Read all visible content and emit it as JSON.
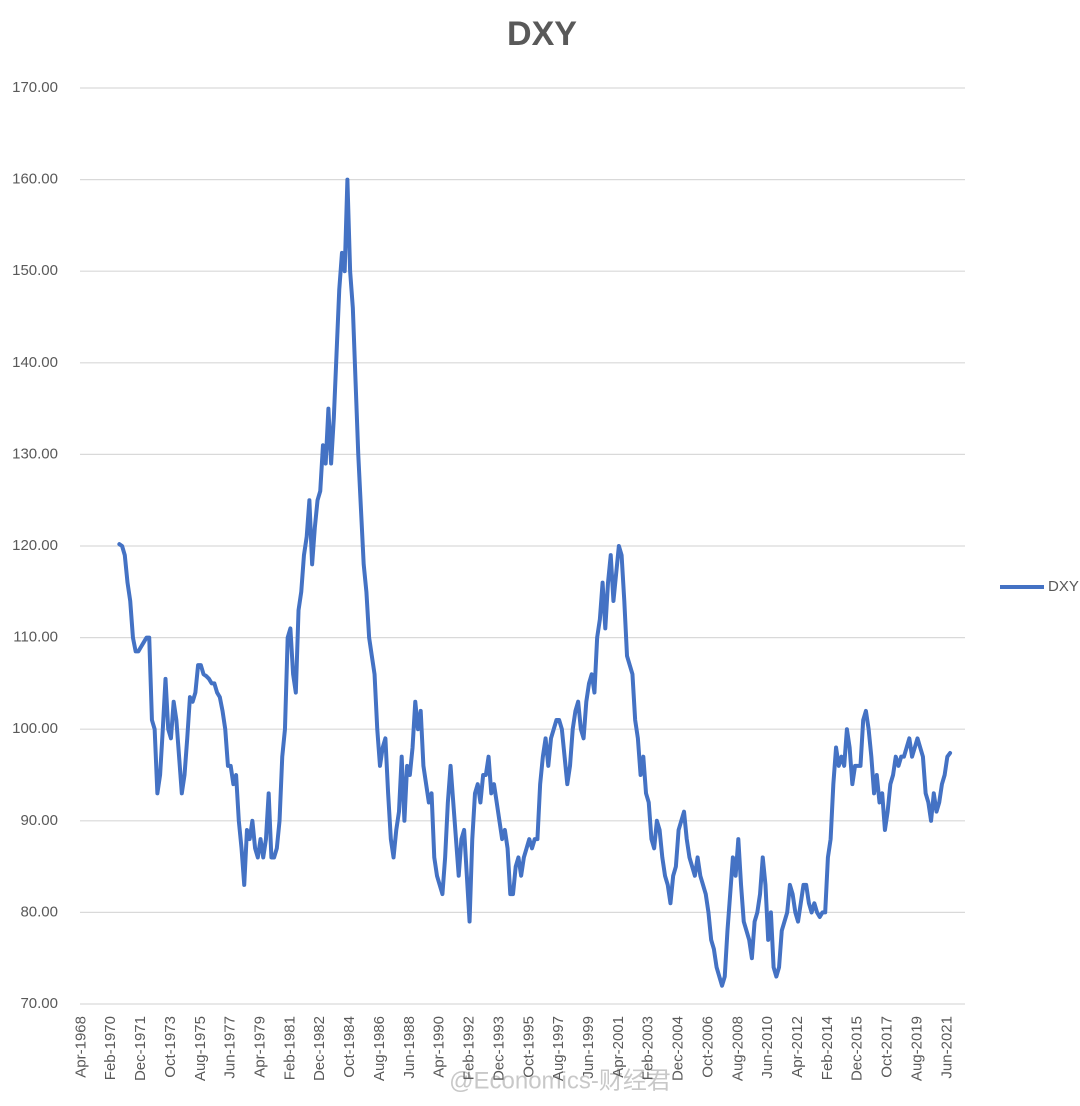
{
  "chart_data": {
    "type": "line",
    "title": "DXY",
    "categories": [
      "Apr-1968",
      null,
      null,
      null,
      null,
      null,
      null,
      null,
      null,
      null,
      null,
      "Feb-1970",
      null,
      null,
      null,
      null,
      null,
      null,
      null,
      null,
      null,
      null,
      "Dec-1971",
      null,
      null,
      null,
      null,
      null,
      null,
      null,
      null,
      null,
      null,
      "Oct-1973",
      null,
      null,
      null,
      null,
      null,
      null,
      null,
      null,
      null,
      null,
      "Aug-1975",
      null,
      null,
      null,
      null,
      null,
      null,
      null,
      null,
      null,
      null,
      "Jun-1977",
      null,
      null,
      null,
      null,
      null,
      null,
      null,
      null,
      null,
      null,
      "Apr-1979",
      null,
      null,
      null,
      null,
      null,
      null,
      null,
      null,
      null,
      null,
      "Feb-1981",
      null,
      null,
      null,
      null,
      null,
      null,
      null,
      null,
      null,
      null,
      "Dec-1982",
      null,
      null,
      null,
      null,
      null,
      null,
      null,
      null,
      null,
      null,
      "Oct-1984",
      null,
      null,
      null,
      null,
      null,
      null,
      null,
      null,
      null,
      null,
      "Aug-1986",
      null,
      null,
      null,
      null,
      null,
      null,
      null,
      null,
      null,
      null,
      "Jun-1988",
      null,
      null,
      null,
      null,
      null,
      null,
      null,
      null,
      null,
      null,
      "Apr-1990",
      null,
      null,
      null,
      null,
      null,
      null,
      null,
      null,
      null,
      null,
      "Feb-1992",
      null,
      null,
      null,
      null,
      null,
      null,
      null,
      null,
      null,
      null,
      "Dec-1993",
      null,
      null,
      null,
      null,
      null,
      null,
      null,
      null,
      null,
      null,
      "Oct-1995",
      null,
      null,
      null,
      null,
      null,
      null,
      null,
      null,
      null,
      null,
      "Aug-1997",
      null,
      null,
      null,
      null,
      null,
      null,
      null,
      null,
      null,
      null,
      "Jun-1999",
      null,
      null,
      null,
      null,
      null,
      null,
      null,
      null,
      null,
      null,
      "Apr-2001",
      null,
      null,
      null,
      null,
      null,
      null,
      null,
      null,
      null,
      null,
      "Feb-2003",
      null,
      null,
      null,
      null,
      null,
      null,
      null,
      null,
      null,
      null,
      "Dec-2004",
      null,
      null,
      null,
      null,
      null,
      null,
      null,
      null,
      null,
      null,
      "Oct-2006",
      null,
      null,
      null,
      null,
      null,
      null,
      null,
      null,
      null,
      null,
      "Aug-2008",
      null,
      null,
      null,
      null,
      null,
      null,
      null,
      null,
      null,
      null,
      "Jun-2010",
      null,
      null,
      null,
      null,
      null,
      null,
      null,
      null,
      null,
      null,
      "Apr-2012",
      null,
      null,
      null,
      null,
      null,
      null,
      null,
      null,
      null,
      null,
      "Feb-2014",
      null,
      null,
      null,
      null,
      null,
      null,
      null,
      null,
      null,
      null,
      "Dec-2015",
      null,
      null,
      null,
      null,
      null,
      null,
      null,
      null,
      null,
      null,
      "Oct-2017",
      null,
      null,
      null,
      null,
      null,
      null,
      null,
      null,
      null,
      null,
      "Aug-2019",
      null,
      null,
      null,
      null,
      null,
      null,
      null,
      null,
      null,
      null,
      "Jun-2021",
      null,
      null,
      null,
      null,
      null,
      null
    ],
    "series": [
      {
        "name": "DXY",
        "color": "#4472c4",
        "values": [
          null,
          null,
          null,
          null,
          null,
          null,
          null,
          null,
          null,
          null,
          null,
          null,
          null,
          null,
          120.2,
          120,
          119,
          116,
          114,
          110,
          108.5,
          108.5,
          109,
          109.5,
          110,
          110,
          101,
          100,
          93,
          95,
          100,
          105.5,
          100,
          99,
          103,
          101,
          97,
          93,
          95,
          99,
          103.5,
          103,
          104,
          107,
          107,
          106,
          105.8,
          105.5,
          105,
          105,
          104,
          103.5,
          102,
          100,
          96,
          96,
          94,
          95,
          90,
          87,
          83,
          89,
          88,
          90,
          87,
          86,
          88,
          86,
          88,
          93,
          86,
          86,
          87,
          90,
          97,
          100,
          110,
          111,
          106,
          104,
          113,
          115,
          119,
          121,
          125,
          118,
          122,
          125,
          126,
          131,
          129,
          135,
          129,
          134,
          141,
          148,
          152,
          150,
          160,
          150,
          146,
          138,
          130,
          124,
          118,
          115,
          110,
          108,
          106,
          100,
          96,
          98,
          99,
          93,
          88,
          86,
          89,
          91,
          97,
          90,
          96,
          95,
          98,
          103,
          100,
          102,
          96,
          94,
          92,
          93,
          86,
          84,
          83,
          82,
          86,
          92,
          96,
          92,
          88,
          84,
          88,
          89,
          84,
          79,
          88,
          93,
          94,
          92,
          95,
          95,
          97,
          93,
          94,
          92,
          90,
          88,
          89,
          87,
          82,
          82,
          85,
          86,
          84,
          86,
          87,
          88,
          87,
          88,
          88,
          94,
          97,
          99,
          96,
          99,
          100,
          101,
          101,
          100,
          97,
          94,
          96,
          100,
          102,
          103,
          100,
          99,
          103,
          105,
          106,
          104,
          110,
          112,
          116,
          111,
          116,
          119,
          114,
          117,
          120,
          119,
          114,
          108,
          107,
          106,
          101,
          99,
          95,
          97,
          93,
          92,
          88,
          87,
          90,
          89,
          86,
          84,
          83,
          81,
          84,
          85,
          89,
          90,
          91,
          88,
          86,
          85,
          84,
          86,
          84,
          83,
          82,
          80,
          77,
          76,
          74,
          73,
          72,
          73,
          78,
          82,
          86,
          84,
          88,
          83,
          79,
          78,
          77,
          75,
          79,
          80,
          82,
          86,
          83,
          77,
          80,
          74,
          73,
          74,
          78,
          79,
          80,
          83,
          82,
          80,
          79,
          81,
          83,
          83,
          81,
          80,
          81,
          80,
          79.5,
          80,
          80,
          86,
          88,
          94,
          98,
          96,
          97,
          96,
          100,
          98,
          94,
          96,
          96,
          96,
          101,
          102,
          100,
          97,
          93,
          95,
          92,
          93,
          89,
          91,
          94,
          95,
          97,
          96,
          97,
          97,
          98,
          99,
          97,
          98,
          99,
          98,
          97,
          93,
          92,
          90,
          93,
          91,
          92,
          94,
          95,
          97,
          97.4,
          null,
          null,
          null,
          null,
          null
        ]
      }
    ],
    "ylim": [
      70,
      170
    ],
    "yticks": [
      {
        "value": 70,
        "label": "70.00"
      },
      {
        "value": 80,
        "label": "80.00"
      },
      {
        "value": 90,
        "label": "90.00"
      },
      {
        "value": 100,
        "label": "100.00"
      },
      {
        "value": 110,
        "label": "110.00"
      },
      {
        "value": 120,
        "label": "120.00"
      },
      {
        "value": 130,
        "label": "130.00"
      },
      {
        "value": 140,
        "label": "140.00"
      },
      {
        "value": 150,
        "label": "150.00"
      },
      {
        "value": 160,
        "label": "160.00"
      },
      {
        "value": 170,
        "label": "170.00"
      }
    ],
    "grid": true,
    "legend": "right"
  },
  "watermark": "@Economics-财经君"
}
